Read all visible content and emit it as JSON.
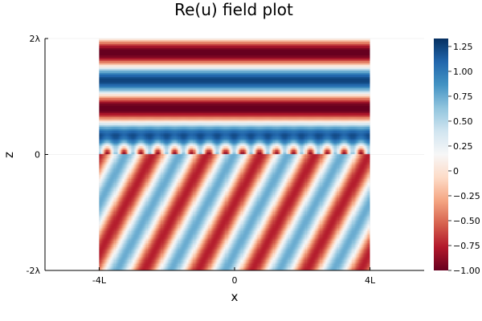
{
  "chart_data": {
    "type": "heatmap",
    "title": "Re(u) field plot",
    "xlabel": "x",
    "ylabel": "z",
    "x_ticks": [
      {
        "value": -4,
        "label": "-4L"
      },
      {
        "value": 0,
        "label": "0"
      },
      {
        "value": 4,
        "label": "4L"
      }
    ],
    "y_ticks": [
      {
        "value": -2,
        "label": "-2λ"
      },
      {
        "value": 0,
        "label": "0"
      },
      {
        "value": 2,
        "label": "2λ"
      }
    ],
    "xlim": [
      -5.6,
      5.6
    ],
    "ylim": [
      -2,
      2
    ],
    "data_x_range": [
      -4,
      4
    ],
    "data_y_range": [
      -2,
      2
    ],
    "grid": true,
    "colorbar": {
      "colormap": "RdBu",
      "range": [
        -1.0,
        1.33
      ],
      "ticks": [
        {
          "value": 1.25,
          "label": "1.25"
        },
        {
          "value": 1.0,
          "label": "1.00"
        },
        {
          "value": 0.75,
          "label": "0.75"
        },
        {
          "value": 0.5,
          "label": "0.50"
        },
        {
          "value": 0.25,
          "label": "0.25"
        },
        {
          "value": 0.0,
          "label": "0"
        },
        {
          "value": -0.25,
          "label": "−0.25"
        },
        {
          "value": -0.5,
          "label": "−0.50"
        },
        {
          "value": -0.75,
          "label": "−0.75"
        },
        {
          "value": -1.0,
          "label": "−1.00"
        }
      ]
    },
    "field": {
      "upper_region": "horizontal standing-wave bands",
      "upper_band_period_z": 0.96,
      "interface_z": 0,
      "interface_ripple_period_x": 0.5,
      "lower_region": "oblique plane-wave stripes",
      "lower_stripe_period_x": 1.6,
      "lower_stripe_amplitude": 0.75
    },
    "colors": {
      "red": "#67001f",
      "blue": "#053061",
      "white": "#f7f7f7"
    }
  }
}
